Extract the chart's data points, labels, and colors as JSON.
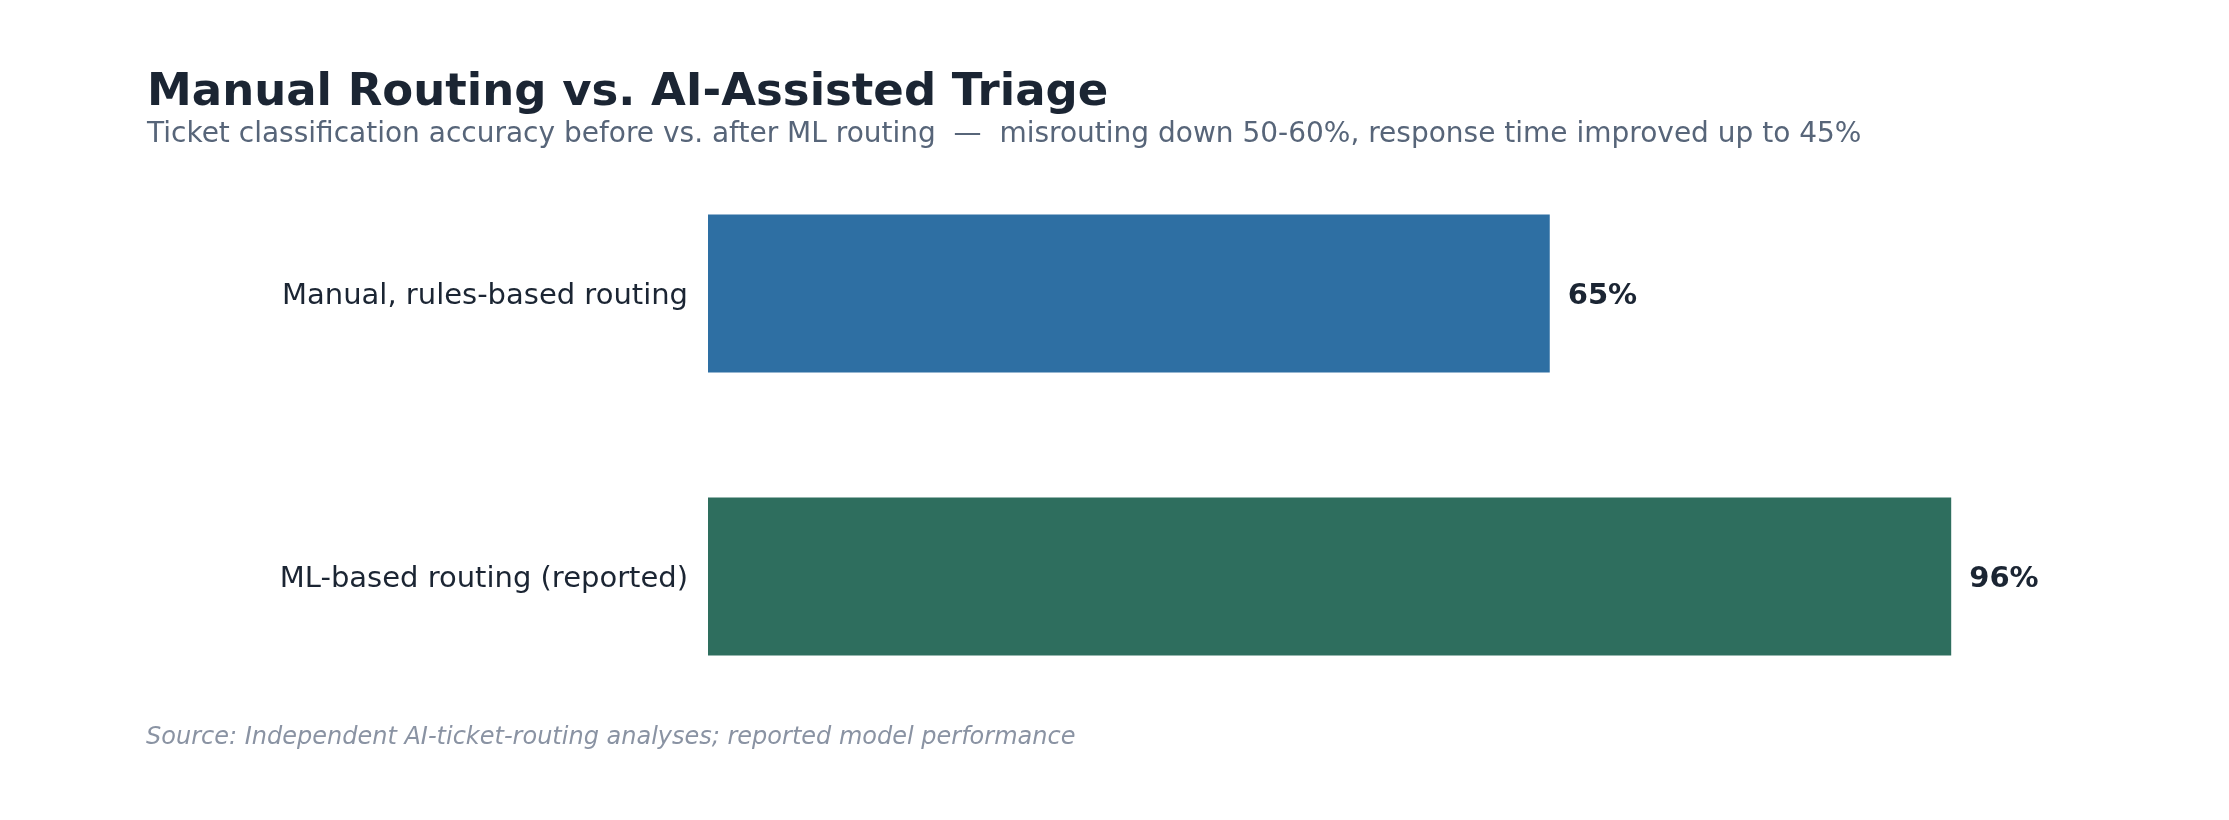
{
  "chart_data": {
    "type": "bar",
    "orientation": "horizontal",
    "title": "Manual Routing vs. AI-Assisted Triage",
    "subtitle": "Ticket classification accuracy before vs. after ML routing  —  misrouting down 50-60%, response time improved up to 45%",
    "categories": [
      "Manual, rules-based routing",
      "ML-based routing (reported)"
    ],
    "values": [
      65,
      96
    ],
    "colors": [
      "#2e6fa3",
      "#2e6e5e"
    ],
    "value_labels": [
      "65%",
      "96%"
    ],
    "tick_labels": "y",
    "annotations": [
      "Source: Independent AI-ticket-routing analyses; reported model performance"
    ]
  }
}
